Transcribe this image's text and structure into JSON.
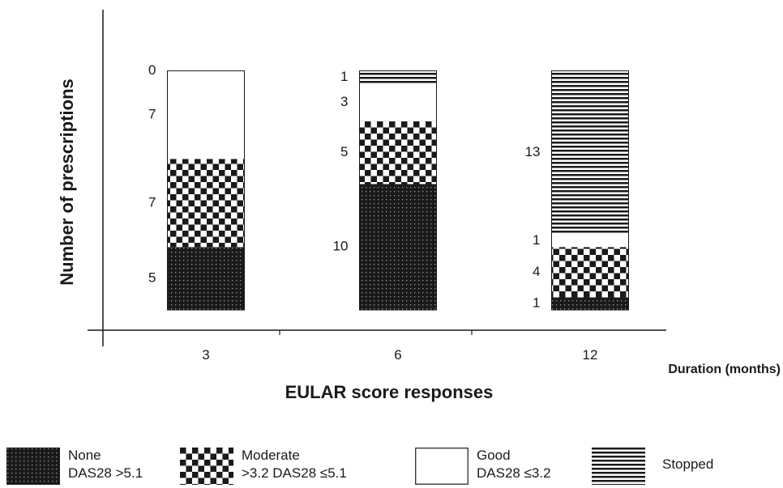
{
  "chart_data": {
    "type": "bar",
    "stacked": true,
    "title": "",
    "ylabel": "Number of  prescriptions",
    "xlabel": "EULAR score responses",
    "x_axis_note": "Duration (months)",
    "categories": [
      "3",
      "6",
      "12"
    ],
    "ylim": [
      0,
      19
    ],
    "series": [
      {
        "name": "None",
        "name_line2": "DAS28 >5.1",
        "pattern": "dots",
        "values": [
          5,
          10,
          1
        ]
      },
      {
        "name": "Moderate",
        "name_line2": ">3.2 DAS28 ≤5.1",
        "pattern": "checker",
        "values": [
          7,
          5,
          4
        ]
      },
      {
        "name": "Good",
        "name_line2": "DAS28 ≤3.2",
        "pattern": "white",
        "values": [
          7,
          3,
          1
        ]
      },
      {
        "name": "Stopped",
        "name_line2": "",
        "pattern": "stripes",
        "values": [
          0,
          1,
          13
        ]
      }
    ],
    "legend_position": "bottom",
    "grid": false,
    "colors": {
      "ink": "#1a1a1a",
      "background": "#ffffff"
    }
  }
}
